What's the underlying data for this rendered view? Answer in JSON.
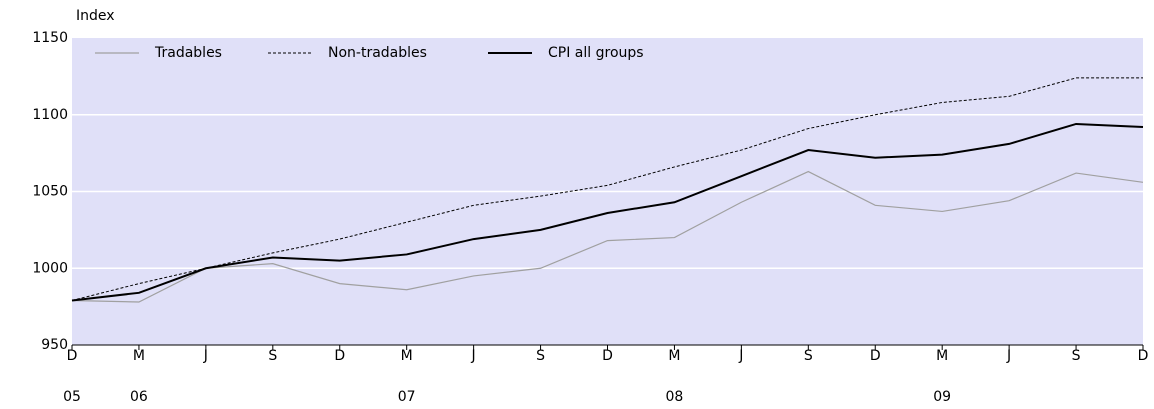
{
  "chart_data": {
    "type": "line",
    "y_label": "Index",
    "categories": [
      "D",
      "M",
      "J",
      "S",
      "D",
      "M",
      "J",
      "S",
      "D",
      "M",
      "J",
      "S",
      "D",
      "M",
      "J",
      "S",
      "D"
    ],
    "category_years": [
      "05",
      "06",
      null,
      null,
      null,
      "07",
      null,
      null,
      null,
      "08",
      null,
      null,
      null,
      "09",
      null,
      null,
      null
    ],
    "series": [
      {
        "name": "Tradables",
        "color": "#a0a0a0",
        "linestyle": "solid",
        "linewidth": 1.2,
        "values": [
          979,
          978,
          1000,
          1003,
          990,
          986,
          995,
          1000,
          1018,
          1020,
          1043,
          1063,
          1041,
          1037,
          1044,
          1062,
          1056
        ]
      },
      {
        "name": "Non-tradables",
        "color": "#000000",
        "linestyle": "dashed",
        "linewidth": 1,
        "values": [
          979,
          990,
          1000,
          1010,
          1019,
          1030,
          1041,
          1047,
          1054,
          1066,
          1077,
          1091,
          1100,
          1108,
          1112,
          1124,
          1124
        ]
      },
      {
        "name": "CPI all groups",
        "color": "#000000",
        "linestyle": "solid",
        "linewidth": 2,
        "values": [
          979,
          984,
          1000,
          1007,
          1005,
          1009,
          1019,
          1025,
          1036,
          1043,
          1060,
          1077,
          1072,
          1074,
          1081,
          1094,
          1092
        ]
      }
    ],
    "ylim": [
      950,
      1150
    ],
    "yticks": [
      950,
      1000,
      1050,
      1100,
      1150
    ],
    "grid": true,
    "background": "#e0e0f8",
    "legend": "top-left"
  }
}
